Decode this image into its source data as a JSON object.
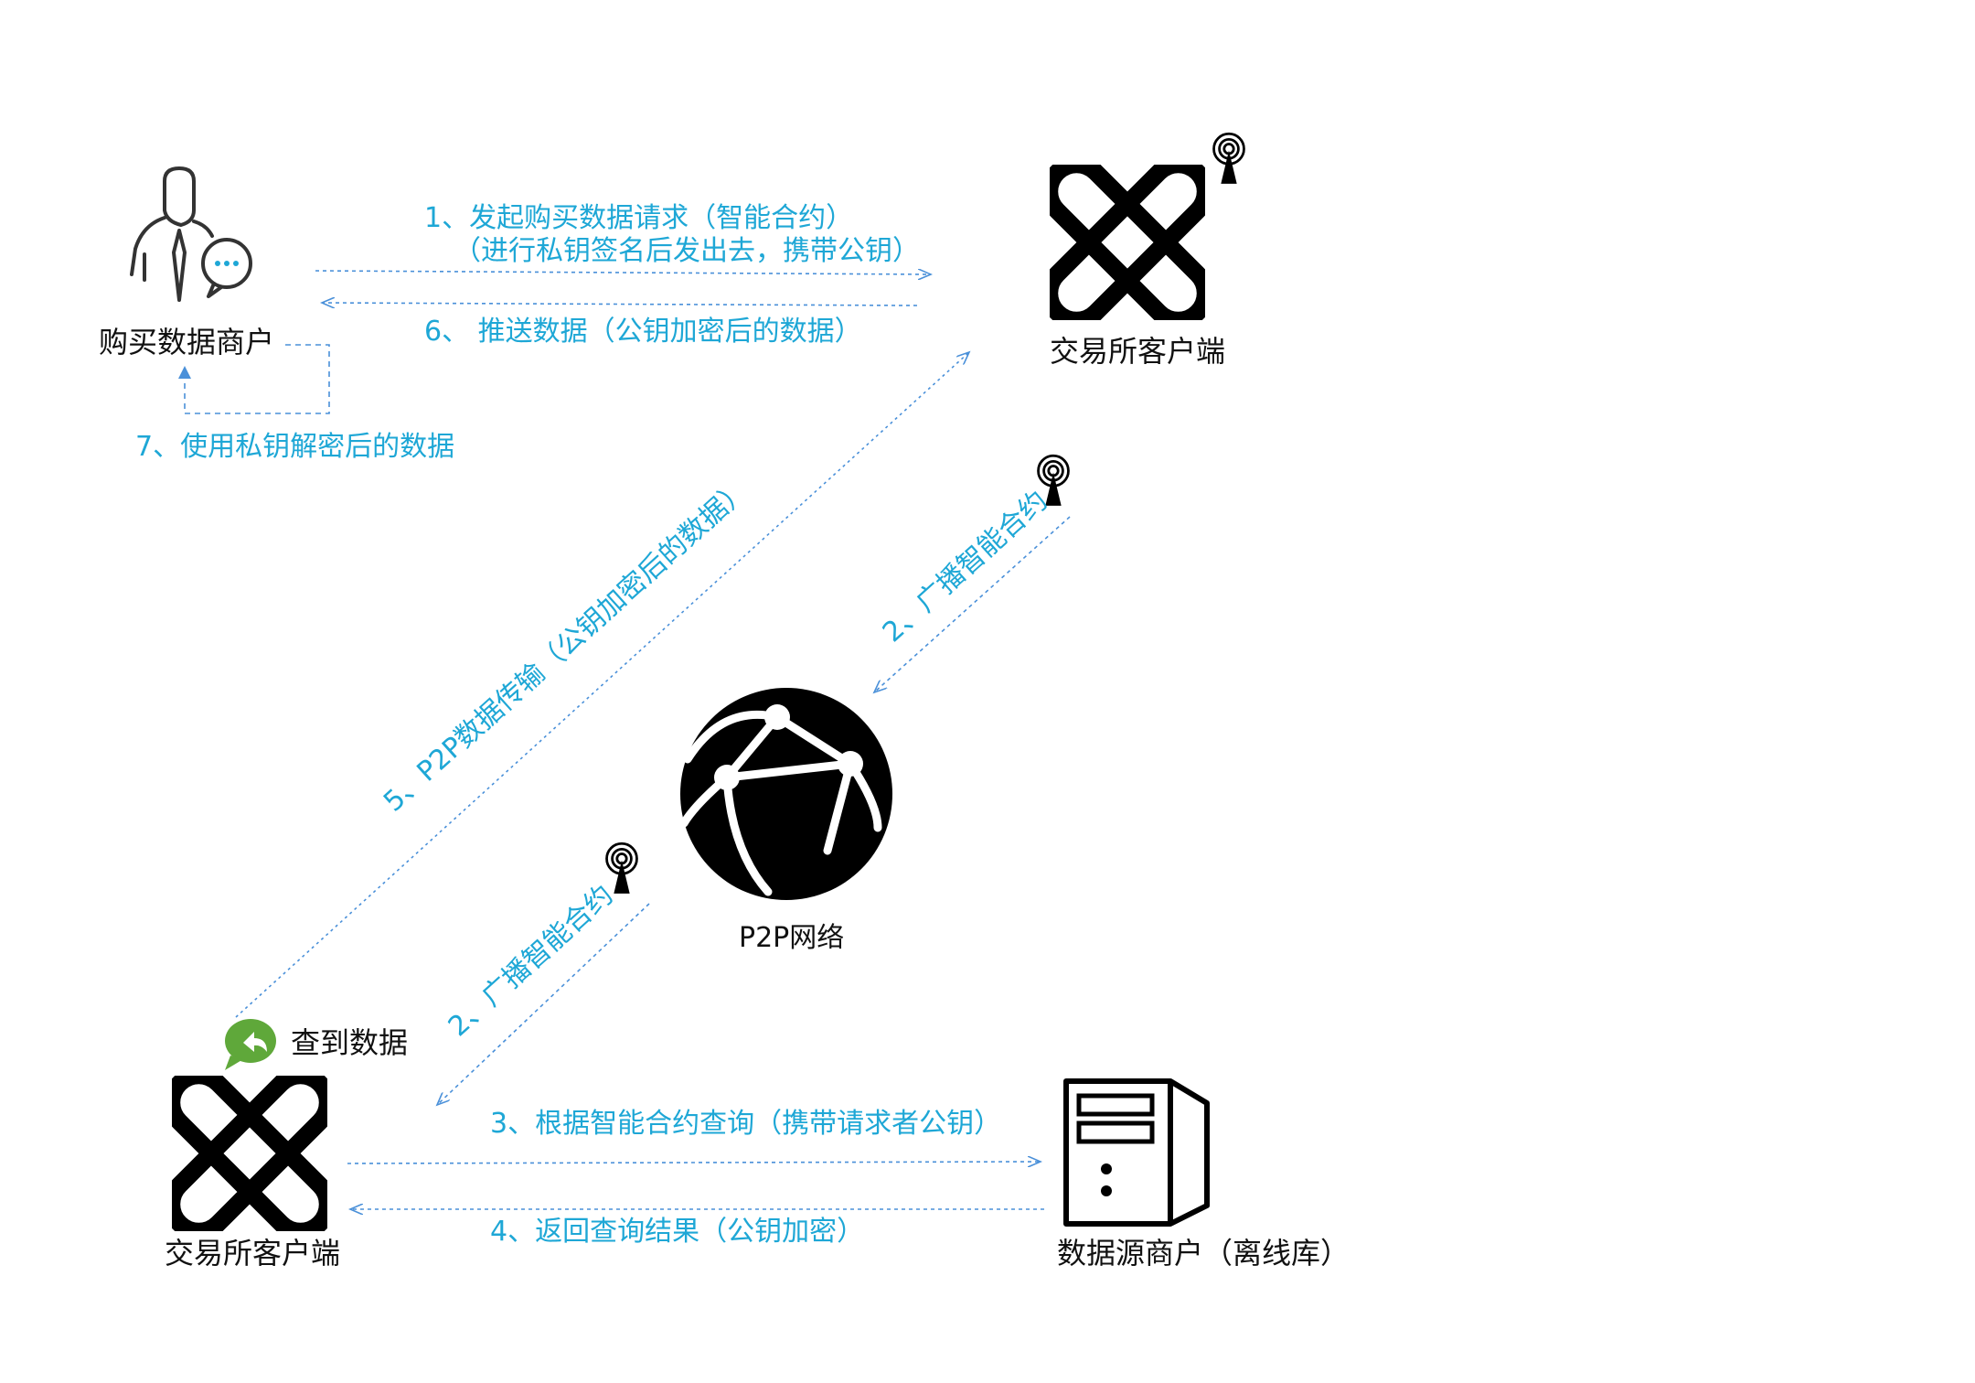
{
  "nodes": {
    "buyer": {
      "label": "购买数据商户",
      "icon": "buyer-person-chat-icon"
    },
    "exchange_top": {
      "label": "交易所客户端",
      "icon": "exchange-x-logo-icon"
    },
    "network": {
      "label": "P2P网络",
      "icon": "globe-network-icon"
    },
    "exchange_bottom": {
      "label": "交易所客户端",
      "icon": "exchange-x-logo-icon"
    },
    "source": {
      "label": "数据源商户（离线库）",
      "icon": "server-tower-icon"
    },
    "found": {
      "label": "查到数据",
      "icon": "green-reply-bubble-icon"
    }
  },
  "steps": {
    "s1_line1": "1、发起购买数据请求（智能合约）",
    "s1_line2": "（进行私钥签名后发出去，携带公钥）",
    "s6": "6、 推送数据（公钥加密后的数据）",
    "s7": "7、使用私钥解密后的数据",
    "s5": "5、P2P数据传输（公钥加密后的数据）",
    "s2_top": "2、广播智能合约",
    "s2_bottom": "2、广播智能合约",
    "s3": "3、根据智能合约查询（携带请求者公钥）",
    "s4": "4、返回查询结果（公钥加密）"
  },
  "colors": {
    "step_text": "#1ea7d6",
    "arrow": "#4a90d9",
    "icon": "#000000",
    "green": "#5fa83a"
  }
}
